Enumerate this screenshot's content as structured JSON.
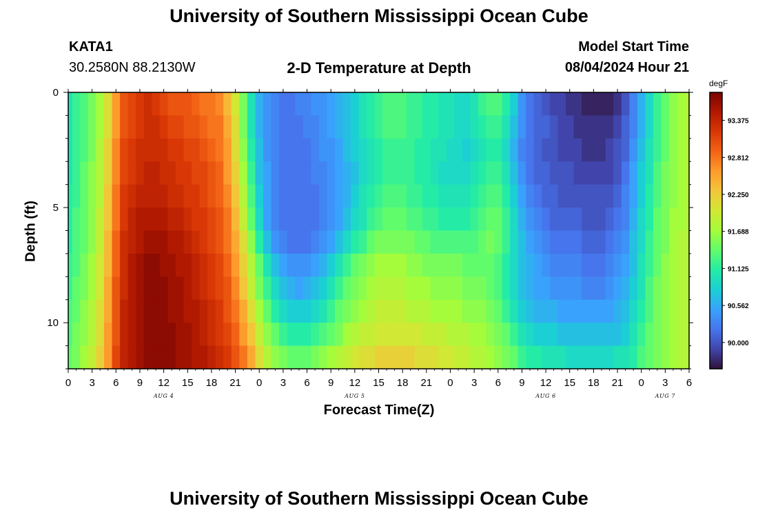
{
  "page": {
    "title_top": "University of Southern Mississippi Ocean Cube",
    "title_bottom": "University of Southern Mississippi Ocean Cube"
  },
  "station": {
    "id": "KATA1",
    "coords": "30.2580N  88.2130W"
  },
  "model": {
    "start_label": "Model Start Time",
    "start_value": "08/04/2024 Hour 21"
  },
  "chart_data": {
    "type": "heatmap",
    "title": "2-D Temperature at Depth",
    "xlabel": "Forecast Time(Z)",
    "ylabel": "Depth (ft)",
    "ylim": [
      0,
      12
    ],
    "y_ticks": [
      "0",
      "5",
      "10"
    ],
    "x_range_hours_from_aug4_00z": [
      0,
      78
    ],
    "x_tick_labels": [
      "0",
      "3",
      "6",
      "9",
      "12",
      "15",
      "18",
      "21",
      "0",
      "3",
      "6",
      "9",
      "12",
      "15",
      "18",
      "21",
      "0",
      "3",
      "6",
      "9",
      "12",
      "15",
      "18",
      "21",
      "0",
      "3",
      "6"
    ],
    "day_labels": [
      {
        "label": "AUG 4",
        "hour": 12
      },
      {
        "label": "AUG 5",
        "hour": 36
      },
      {
        "label": "AUG 6",
        "hour": 60
      },
      {
        "label": "AUG 7",
        "hour": 75
      }
    ],
    "colorbar": {
      "unit": "degF",
      "min": 89.6,
      "max": 93.8,
      "ticks": [
        "93.375",
        "92.812",
        "92.250",
        "91.688",
        "91.125",
        "90.562",
        "90.000"
      ],
      "colormap": [
        "#30123b",
        "#4145ab",
        "#4675ed",
        "#39a2fc",
        "#1bcfd4",
        "#24eca6",
        "#61fc6c",
        "#a4fc3b",
        "#d1e834",
        "#f3c63a",
        "#fe9b2d",
        "#f36315",
        "#d93806",
        "#b11901",
        "#7a0402"
      ]
    },
    "depth_levels": 12,
    "time_step_hours": 1,
    "temperature_field_description": "rows = depth 0..11 ft, columns = hourly 0..78; values in degF",
    "values": [
      [
        91.0,
        91.2,
        91.3,
        91.5,
        91.7,
        92.1,
        92.6,
        93.0,
        93.1,
        93.2,
        93.3,
        93.2,
        93.1,
        93.0,
        93.0,
        93.0,
        92.9,
        92.8,
        92.8,
        92.7,
        92.4,
        92.0,
        91.5,
        91.0,
        90.6,
        90.4,
        90.3,
        90.2,
        90.2,
        90.3,
        90.3,
        90.4,
        90.4,
        90.5,
        90.6,
        90.7,
        90.8,
        91.0,
        91.1,
        91.2,
        91.3,
        91.3,
        91.3,
        91.2,
        91.2,
        91.1,
        91.1,
        91.0,
        91.0,
        90.9,
        90.9,
        91.0,
        91.2,
        91.3,
        91.3,
        91.1,
        90.8,
        90.4,
        90.2,
        90.1,
        90.0,
        89.9,
        89.9,
        89.8,
        89.8,
        89.7,
        89.7,
        89.7,
        89.7,
        89.8,
        90.0,
        90.3,
        90.6,
        90.9,
        91.2,
        91.4,
        91.6,
        91.7,
        91.8
      ],
      [
        91.0,
        91.2,
        91.3,
        91.5,
        91.7,
        92.1,
        92.6,
        93.0,
        93.1,
        93.2,
        93.3,
        93.3,
        93.2,
        93.1,
        93.1,
        93.0,
        93.0,
        92.9,
        92.8,
        92.8,
        92.5,
        92.1,
        91.5,
        91.0,
        90.6,
        90.4,
        90.3,
        90.2,
        90.2,
        90.2,
        90.3,
        90.3,
        90.4,
        90.5,
        90.6,
        90.7,
        90.8,
        91.0,
        91.1,
        91.2,
        91.3,
        91.3,
        91.3,
        91.2,
        91.2,
        91.1,
        91.1,
        91.0,
        91.0,
        90.9,
        90.9,
        91.0,
        91.1,
        91.2,
        91.2,
        91.0,
        90.7,
        90.4,
        90.2,
        90.1,
        90.1,
        90.0,
        89.9,
        89.9,
        89.8,
        89.8,
        89.8,
        89.8,
        89.8,
        89.9,
        90.1,
        90.3,
        90.6,
        90.9,
        91.2,
        91.4,
        91.6,
        91.7,
        91.8
      ],
      [
        91.0,
        91.2,
        91.3,
        91.5,
        91.8,
        92.2,
        92.7,
        93.1,
        93.2,
        93.3,
        93.3,
        93.3,
        93.3,
        93.2,
        93.2,
        93.1,
        93.1,
        93.0,
        92.9,
        92.8,
        92.6,
        92.1,
        91.6,
        91.1,
        90.7,
        90.4,
        90.3,
        90.2,
        90.2,
        90.2,
        90.2,
        90.3,
        90.4,
        90.4,
        90.5,
        90.7,
        90.8,
        90.9,
        91.0,
        91.1,
        91.2,
        91.2,
        91.2,
        91.2,
        91.1,
        91.1,
        91.0,
        91.0,
        90.9,
        90.9,
        90.8,
        90.9,
        91.0,
        91.1,
        91.1,
        90.9,
        90.6,
        90.3,
        90.2,
        90.1,
        90.0,
        90.0,
        89.9,
        89.9,
        89.9,
        89.8,
        89.8,
        89.8,
        89.9,
        90.0,
        90.1,
        90.4,
        90.7,
        91.0,
        91.2,
        91.4,
        91.6,
        91.7,
        91.8
      ],
      [
        91.0,
        91.2,
        91.4,
        91.6,
        91.8,
        92.2,
        92.7,
        93.1,
        93.2,
        93.3,
        93.4,
        93.4,
        93.3,
        93.3,
        93.2,
        93.2,
        93.1,
        93.1,
        93.0,
        92.9,
        92.6,
        92.2,
        91.7,
        91.2,
        90.7,
        90.5,
        90.3,
        90.2,
        90.2,
        90.2,
        90.2,
        90.3,
        90.3,
        90.4,
        90.5,
        90.6,
        90.7,
        90.9,
        91.0,
        91.1,
        91.2,
        91.2,
        91.2,
        91.2,
        91.1,
        91.1,
        91.0,
        90.9,
        90.9,
        90.9,
        90.9,
        91.0,
        91.1,
        91.2,
        91.2,
        91.0,
        90.7,
        90.4,
        90.2,
        90.1,
        90.1,
        90.0,
        90.0,
        90.0,
        89.9,
        89.9,
        89.9,
        89.9,
        89.9,
        90.0,
        90.2,
        90.5,
        90.8,
        91.0,
        91.3,
        91.5,
        91.6,
        91.7,
        91.8
      ],
      [
        91.1,
        91.2,
        91.4,
        91.6,
        91.8,
        92.3,
        92.8,
        93.2,
        93.3,
        93.4,
        93.4,
        93.4,
        93.4,
        93.3,
        93.3,
        93.2,
        93.2,
        93.1,
        93.0,
        92.9,
        92.7,
        92.3,
        91.8,
        91.3,
        90.8,
        90.5,
        90.3,
        90.2,
        90.2,
        90.2,
        90.2,
        90.2,
        90.3,
        90.4,
        90.5,
        90.6,
        90.8,
        91.0,
        91.1,
        91.2,
        91.3,
        91.3,
        91.3,
        91.2,
        91.2,
        91.1,
        91.1,
        91.0,
        91.0,
        91.0,
        91.0,
        91.1,
        91.2,
        91.3,
        91.3,
        91.1,
        90.8,
        90.5,
        90.3,
        90.2,
        90.1,
        90.1,
        90.0,
        90.0,
        90.0,
        90.0,
        90.0,
        90.0,
        90.0,
        90.1,
        90.3,
        90.5,
        90.8,
        91.1,
        91.3,
        91.5,
        91.6,
        91.7,
        91.8
      ],
      [
        91.1,
        91.3,
        91.4,
        91.6,
        91.9,
        92.3,
        92.8,
        93.2,
        93.4,
        93.5,
        93.5,
        93.5,
        93.5,
        93.4,
        93.4,
        93.3,
        93.2,
        93.2,
        93.1,
        93.0,
        92.8,
        92.4,
        91.9,
        91.4,
        90.9,
        90.5,
        90.3,
        90.2,
        90.2,
        90.2,
        90.2,
        90.2,
        90.3,
        90.4,
        90.5,
        90.7,
        90.9,
        91.0,
        91.2,
        91.3,
        91.4,
        91.4,
        91.4,
        91.3,
        91.3,
        91.2,
        91.2,
        91.1,
        91.1,
        91.1,
        91.1,
        91.2,
        91.3,
        91.4,
        91.4,
        91.2,
        90.9,
        90.6,
        90.4,
        90.3,
        90.2,
        90.1,
        90.1,
        90.1,
        90.1,
        90.0,
        90.0,
        90.0,
        90.1,
        90.2,
        90.3,
        90.6,
        90.9,
        91.1,
        91.4,
        91.5,
        91.7,
        91.7,
        91.8
      ],
      [
        91.1,
        91.3,
        91.4,
        91.6,
        91.9,
        92.4,
        92.9,
        93.3,
        93.4,
        93.5,
        93.6,
        93.6,
        93.6,
        93.5,
        93.5,
        93.4,
        93.3,
        93.2,
        93.1,
        93.0,
        92.8,
        92.5,
        92.1,
        91.6,
        91.1,
        90.7,
        90.4,
        90.3,
        90.2,
        90.2,
        90.2,
        90.3,
        90.4,
        90.5,
        90.7,
        90.9,
        91.1,
        91.2,
        91.4,
        91.5,
        91.5,
        91.5,
        91.5,
        91.5,
        91.4,
        91.4,
        91.3,
        91.3,
        91.3,
        91.3,
        91.3,
        91.3,
        91.4,
        91.5,
        91.4,
        91.2,
        90.9,
        90.7,
        90.5,
        90.4,
        90.3,
        90.2,
        90.2,
        90.2,
        90.2,
        90.1,
        90.1,
        90.1,
        90.2,
        90.3,
        90.4,
        90.7,
        90.9,
        91.2,
        91.4,
        91.5,
        91.7,
        91.8,
        91.8
      ],
      [
        91.2,
        91.3,
        91.5,
        91.7,
        92.0,
        92.4,
        92.9,
        93.3,
        93.5,
        93.6,
        93.7,
        93.7,
        93.6,
        93.6,
        93.5,
        93.5,
        93.4,
        93.3,
        93.2,
        93.1,
        92.9,
        92.6,
        92.2,
        91.8,
        91.4,
        91.0,
        90.7,
        90.5,
        90.4,
        90.4,
        90.4,
        90.5,
        90.6,
        90.8,
        91.0,
        91.2,
        91.4,
        91.5,
        91.6,
        91.7,
        91.7,
        91.7,
        91.7,
        91.6,
        91.6,
        91.5,
        91.5,
        91.5,
        91.5,
        91.5,
        91.4,
        91.4,
        91.4,
        91.4,
        91.3,
        91.1,
        90.9,
        90.7,
        90.6,
        90.5,
        90.4,
        90.3,
        90.3,
        90.3,
        90.3,
        90.2,
        90.2,
        90.2,
        90.3,
        90.4,
        90.5,
        90.7,
        91.0,
        91.2,
        91.4,
        91.6,
        91.7,
        91.8,
        91.8
      ],
      [
        91.2,
        91.4,
        91.5,
        91.7,
        92.0,
        92.5,
        93.0,
        93.3,
        93.5,
        93.6,
        93.7,
        93.7,
        93.7,
        93.6,
        93.6,
        93.5,
        93.4,
        93.3,
        93.2,
        93.1,
        93.0,
        92.7,
        92.3,
        91.9,
        91.5,
        91.2,
        90.9,
        90.7,
        90.6,
        90.5,
        90.6,
        90.7,
        90.8,
        91.0,
        91.2,
        91.4,
        91.5,
        91.6,
        91.7,
        91.8,
        91.8,
        91.8,
        91.8,
        91.7,
        91.7,
        91.7,
        91.6,
        91.6,
        91.6,
        91.6,
        91.5,
        91.5,
        91.5,
        91.4,
        91.3,
        91.1,
        90.9,
        90.7,
        90.6,
        90.5,
        90.5,
        90.4,
        90.4,
        90.4,
        90.4,
        90.3,
        90.3,
        90.3,
        90.4,
        90.5,
        90.6,
        90.8,
        91.0,
        91.3,
        91.5,
        91.6,
        91.7,
        91.8,
        91.8
      ],
      [
        91.3,
        91.4,
        91.6,
        91.8,
        92.1,
        92.5,
        93.0,
        93.4,
        93.5,
        93.6,
        93.7,
        93.7,
        93.7,
        93.6,
        93.6,
        93.5,
        93.5,
        93.4,
        93.3,
        93.2,
        93.0,
        92.8,
        92.5,
        92.1,
        91.7,
        91.4,
        91.1,
        90.9,
        90.8,
        90.8,
        90.8,
        90.9,
        91.0,
        91.2,
        91.4,
        91.5,
        91.6,
        91.7,
        91.8,
        91.9,
        91.9,
        91.9,
        91.9,
        91.8,
        91.8,
        91.8,
        91.7,
        91.7,
        91.7,
        91.7,
        91.6,
        91.6,
        91.6,
        91.5,
        91.4,
        91.2,
        91.0,
        90.8,
        90.7,
        90.6,
        90.6,
        90.6,
        90.5,
        90.5,
        90.5,
        90.5,
        90.5,
        90.5,
        90.5,
        90.6,
        90.7,
        90.9,
        91.1,
        91.3,
        91.5,
        91.6,
        91.7,
        91.8,
        91.8
      ],
      [
        91.3,
        91.5,
        91.6,
        91.8,
        92.1,
        92.6,
        93.0,
        93.4,
        93.5,
        93.6,
        93.7,
        93.7,
        93.7,
        93.7,
        93.6,
        93.6,
        93.5,
        93.4,
        93.3,
        93.2,
        93.1,
        92.9,
        92.6,
        92.3,
        91.9,
        91.6,
        91.4,
        91.2,
        91.1,
        91.1,
        91.1,
        91.2,
        91.3,
        91.4,
        91.5,
        91.7,
        91.8,
        91.9,
        91.9,
        92.0,
        92.0,
        92.0,
        92.0,
        92.0,
        92.0,
        91.9,
        91.9,
        91.9,
        91.8,
        91.8,
        91.8,
        91.7,
        91.7,
        91.6,
        91.5,
        91.4,
        91.2,
        91.0,
        90.9,
        90.8,
        90.8,
        90.8,
        90.7,
        90.7,
        90.7,
        90.7,
        90.7,
        90.7,
        90.7,
        90.7,
        90.8,
        91.0,
        91.2,
        91.4,
        91.5,
        91.6,
        91.7,
        91.8,
        91.8
      ],
      [
        91.4,
        91.5,
        91.7,
        91.9,
        92.2,
        92.6,
        93.1,
        93.4,
        93.5,
        93.6,
        93.7,
        93.7,
        93.7,
        93.7,
        93.6,
        93.6,
        93.5,
        93.5,
        93.4,
        93.3,
        93.2,
        93.0,
        92.8,
        92.5,
        92.1,
        91.8,
        91.6,
        91.5,
        91.4,
        91.4,
        91.4,
        91.5,
        91.6,
        91.7,
        91.8,
        91.9,
        92.0,
        92.1,
        92.1,
        92.2,
        92.2,
        92.2,
        92.2,
        92.2,
        92.1,
        92.1,
        92.1,
        92.0,
        92.0,
        91.9,
        91.9,
        91.8,
        91.8,
        91.7,
        91.6,
        91.5,
        91.4,
        91.2,
        91.1,
        91.1,
        91.0,
        91.0,
        91.0,
        90.9,
        90.9,
        90.9,
        90.9,
        90.9,
        90.9,
        91.0,
        91.0,
        91.1,
        91.3,
        91.4,
        91.5,
        91.6,
        91.7,
        91.8,
        91.8
      ]
    ]
  }
}
